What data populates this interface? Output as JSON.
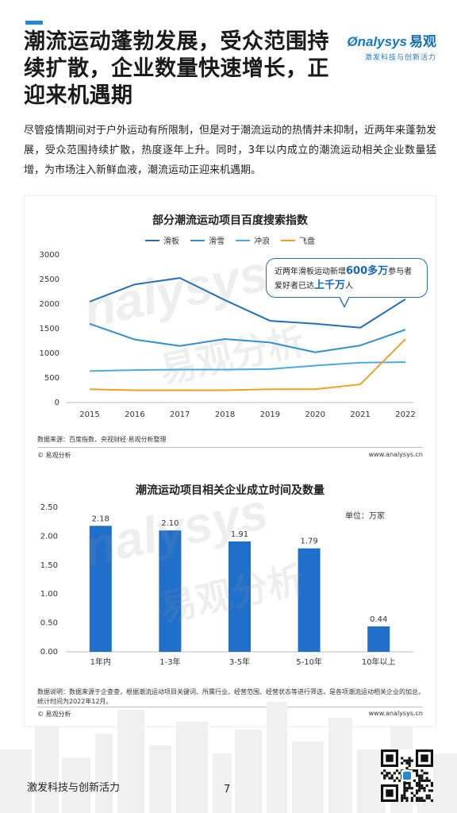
{
  "header": {
    "title": "潮流运动蓬勃发展，受众范围持续扩散，企业数量快速增长，正迎来机遇期",
    "brand_name": "nalysys",
    "brand_cn": "易观",
    "brand_slogan": "激发科技与创新活力"
  },
  "intro": "尽管疫情期间对于户外运动有所限制，但是对于潮流运动的热情并未抑制，近两年来蓬勃发展，受众范围持续扩散，热度逐年上升。同时，3年以内成立的潮流运动相关企业数量猛增，为市场注入新鲜血液，潮流运动正迎来机遇期。",
  "watermark": {
    "latin": "nalysys",
    "cn": "易观分析"
  },
  "chart1": {
    "source": "数据来源：百度指数、央视财经·易观分析整理",
    "copyright": "© 易观分析",
    "website": "www.analysys.cn",
    "callout": {
      "pre1": "近两年滑板运动新增",
      "num": "600多万",
      "post1": "参与者",
      "pre2": "爱好者已达",
      "num2": "上千万",
      "post2": "人"
    }
  },
  "chart2": {
    "unit": "单位：万家",
    "source": "数据说明：数据来源于企查查，根据潮流运动项目关键词、所属行业、经营范围、经营状态等进行筛选，是各项潮流运动相关企业的加总，统计时间为2022年12月。",
    "copyright": "© 易观分析",
    "website": "www.analysys.cn"
  },
  "footer": {
    "slogan": "激发科技与创新活力",
    "page_number": "7"
  },
  "colors": {
    "accent": "#1f8ad6",
    "skateboard": "#1f70b8",
    "ski": "#2f8fd2",
    "surf": "#4aaae6",
    "frisbee": "#f0a020",
    "bar": "#1f6fcb"
  },
  "chart_data": [
    {
      "type": "line",
      "title": "部分潮流运动项目百度搜索指数",
      "x": [
        "2015",
        "2016",
        "2017",
        "2018",
        "2019",
        "2020",
        "2021",
        "2022"
      ],
      "series": [
        {
          "name": "滑板",
          "values": [
            2050,
            2400,
            2530,
            2080,
            1660,
            1600,
            1520,
            2100
          ]
        },
        {
          "name": "滑雪",
          "values": [
            1600,
            1280,
            1150,
            1290,
            1220,
            1020,
            1160,
            1480
          ]
        },
        {
          "name": "冲浪",
          "values": [
            640,
            660,
            670,
            670,
            680,
            750,
            810,
            820
          ]
        },
        {
          "name": "飞盘",
          "values": [
            270,
            250,
            250,
            250,
            270,
            270,
            370,
            1290
          ]
        }
      ],
      "ylim": [
        0,
        3000
      ],
      "yticks": [
        "0",
        "500",
        "1000",
        "1500",
        "2000",
        "2500",
        "3000"
      ],
      "grid": false,
      "legend": "top"
    },
    {
      "type": "bar",
      "title": "潮流运动项目相关企业成立时间及数量",
      "categories": [
        "1年内",
        "1-3年",
        "3-5年",
        "5-10年",
        "10年以上"
      ],
      "values": [
        2.18,
        2.1,
        1.91,
        1.79,
        0.44
      ],
      "labels": [
        "2.18",
        "2.10",
        "1.91",
        "1.79",
        "0.44"
      ],
      "ylim": [
        0,
        2.5
      ],
      "yticks": [
        "0.00",
        "0.50",
        "1.00",
        "1.50",
        "2.00",
        "2.50"
      ],
      "grid": false
    }
  ]
}
